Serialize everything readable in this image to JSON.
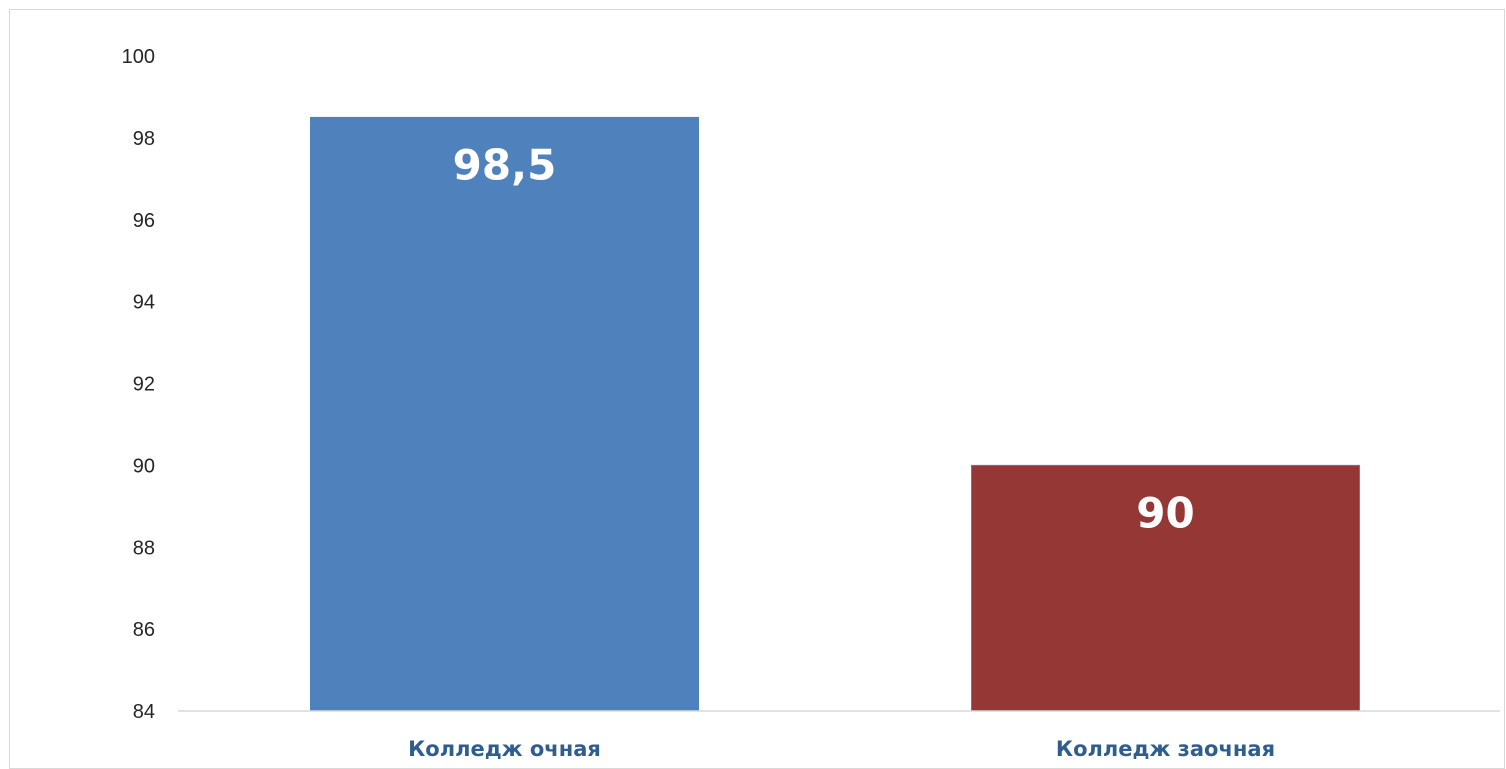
{
  "chart_data": {
    "type": "bar",
    "categories": [
      "Колледж очная",
      "Колледж заочная"
    ],
    "values": [
      98.5,
      90
    ],
    "data_labels": [
      "98,5",
      "90"
    ],
    "bar_colors": [
      "#4f81bd",
      "#953735"
    ],
    "ylim": [
      84,
      100
    ],
    "yticks": [
      84,
      86,
      88,
      90,
      92,
      94,
      96,
      98,
      100
    ],
    "grid": false,
    "legend": "none"
  }
}
